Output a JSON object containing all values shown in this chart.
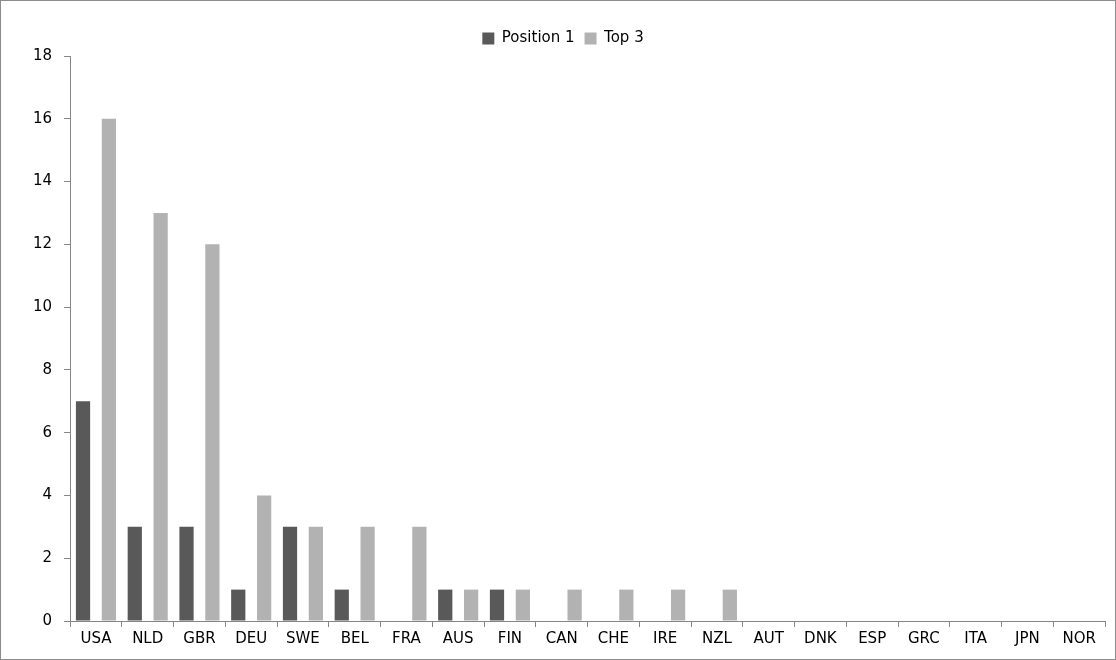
{
  "chart_data": {
    "type": "bar",
    "categories": [
      "USA",
      "NLD",
      "GBR",
      "DEU",
      "SWE",
      "BEL",
      "FRA",
      "AUS",
      "FIN",
      "CAN",
      "CHE",
      "IRE",
      "NZL",
      "AUT",
      "DNK",
      "ESP",
      "GRC",
      "ITA",
      "JPN",
      "NOR"
    ],
    "series": [
      {
        "name": "Position 1",
        "color": "#595959",
        "values": [
          7,
          3,
          3,
          1,
          3,
          1,
          0,
          1,
          1,
          0,
          0,
          0,
          0,
          0,
          0,
          0,
          0,
          0,
          0,
          0
        ]
      },
      {
        "name": "Top 3",
        "color": "#b2b2b2",
        "values": [
          16,
          13,
          12,
          4,
          3,
          3,
          3,
          1,
          1,
          1,
          1,
          1,
          1,
          0,
          0,
          0,
          0,
          0,
          0,
          0
        ]
      }
    ],
    "ylim": [
      0,
      18
    ],
    "yticks": [
      0,
      2,
      4,
      6,
      8,
      10,
      12,
      14,
      16,
      18
    ],
    "grid": false,
    "legend": "top"
  }
}
